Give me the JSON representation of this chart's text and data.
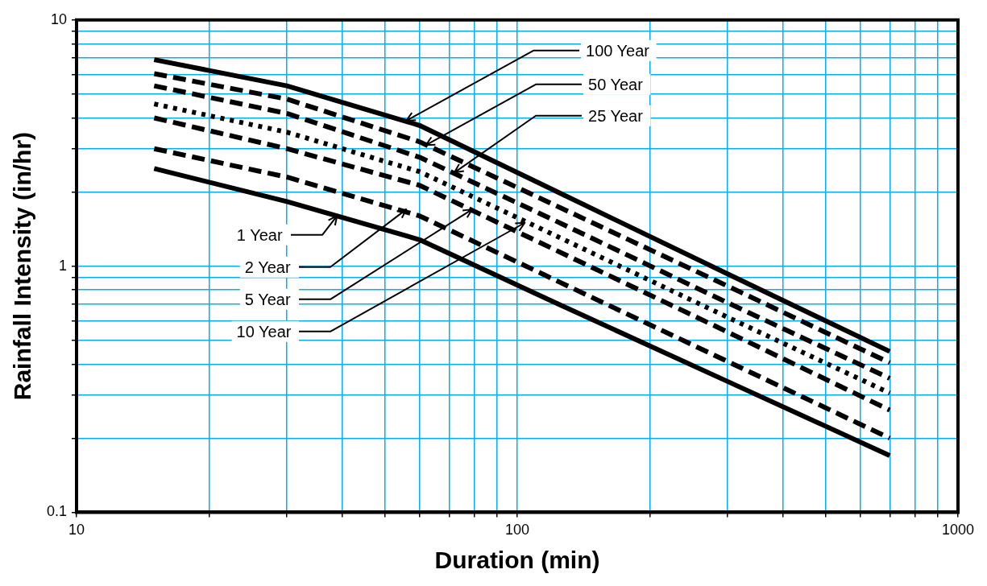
{
  "chart_data": {
    "type": "line",
    "xlabel": "Duration (min)",
    "ylabel": "Rainfall Intensity (in/hr)",
    "log": "xy",
    "grid": true,
    "legend": false,
    "marker": "none",
    "x": [
      15,
      30,
      60,
      120,
      300,
      700
    ],
    "xlim": [
      10,
      1000
    ],
    "ylim": [
      0.1,
      10
    ],
    "xticks": [
      10,
      {
        "value": 20,
        "label": null
      },
      {
        "value": 30,
        "label": null
      },
      {
        "value": 40,
        "label": null
      },
      {
        "value": 50,
        "label": null
      },
      {
        "value": 60,
        "label": null
      },
      {
        "value": 70,
        "label": null
      },
      {
        "value": 80,
        "label": null
      },
      {
        "value": 90,
        "label": null
      },
      100,
      {
        "value": 200,
        "label": null
      },
      {
        "value": 300,
        "label": null
      },
      {
        "value": 400,
        "label": null
      },
      {
        "value": 500,
        "label": null
      },
      {
        "value": 600,
        "label": null
      },
      {
        "value": 700,
        "label": null
      },
      {
        "value": 800,
        "label": null
      },
      {
        "value": 900,
        "label": null
      },
      1000
    ],
    "yticks": [
      0.1,
      {
        "value": 0.2,
        "label": null
      },
      {
        "value": 0.3,
        "label": null
      },
      {
        "value": 0.4,
        "label": null
      },
      {
        "value": 0.5,
        "label": null
      },
      {
        "value": 0.6,
        "label": null
      },
      {
        "value": 0.7,
        "label": null
      },
      {
        "value": 0.8,
        "label": null
      },
      {
        "value": 0.9,
        "label": null
      },
      1,
      {
        "value": 2,
        "label": null
      },
      {
        "value": 3,
        "label": null
      },
      {
        "value": 4,
        "label": null
      },
      {
        "value": 5,
        "label": null
      },
      {
        "value": 6,
        "label": null
      },
      {
        "value": 7,
        "label": null
      },
      {
        "value": 8,
        "label": null
      },
      {
        "value": 9,
        "label": null
      },
      10
    ],
    "series": [
      {
        "color": "#000000",
        "line_style": "solid",
        "values": [
          6.9,
          5.4,
          3.73,
          2.05,
          0.93,
          0.45
        ]
      },
      {
        "color": "#000000",
        "line_style": "dashed",
        "values": [
          6.05,
          4.77,
          3.2,
          1.79,
          0.83,
          0.405
        ]
      },
      {
        "color": "#000000",
        "line_style": "dashed",
        "values": [
          5.4,
          4.17,
          2.77,
          1.55,
          0.71,
          0.35
        ]
      },
      {
        "color": "#000000",
        "line_style": "dotted",
        "values": [
          4.56,
          3.5,
          2.42,
          1.35,
          0.62,
          0.305
        ]
      },
      {
        "color": "#000000",
        "line_style": "dashed",
        "values": [
          4.0,
          3.0,
          2.13,
          1.18,
          0.54,
          0.26
        ]
      },
      {
        "color": "#000000",
        "line_style": "dashed",
        "values": [
          3.0,
          2.3,
          1.6,
          0.89,
          0.41,
          0.2
        ]
      },
      {
        "color": "#000000",
        "line_style": "solid",
        "values": [
          2.49,
          1.83,
          1.28,
          0.72,
          0.34,
          0.17
        ]
      }
    ],
    "annotations": [
      {
        "text": "100 Year",
        "x": 56,
        "y": 3.9
      },
      {
        "text": "50 Year",
        "x": 62,
        "y": 3.1
      },
      {
        "text": "25 Year",
        "x": 72,
        "y": 2.4
      },
      {
        "text": "10 Year",
        "x": 104,
        "y": 1.5
      },
      {
        "text": "5 Year",
        "x": 79,
        "y": 1.7
      },
      {
        "text": "2 Year",
        "x": 56,
        "y": 1.7
      },
      {
        "text": "1 Year",
        "x": 39,
        "y": 1.6
      }
    ]
  }
}
